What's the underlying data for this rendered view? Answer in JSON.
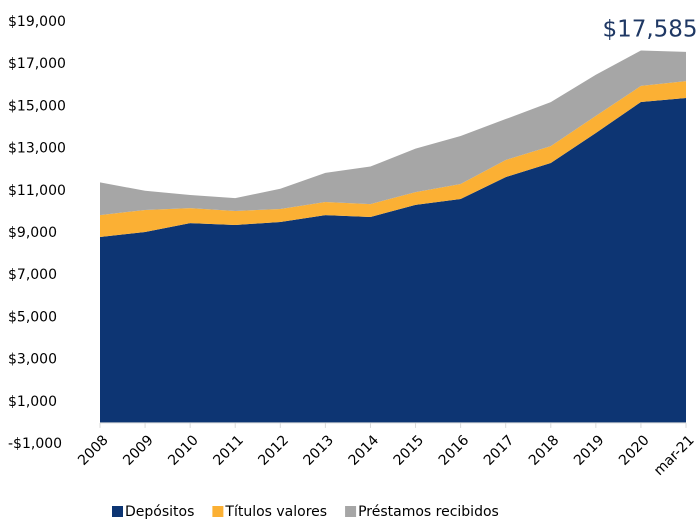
{
  "chart_data": {
    "type": "stacked_area",
    "annotation": "$17,585",
    "categories": [
      "2008",
      "2009",
      "2010",
      "2011",
      "2012",
      "2013",
      "2014",
      "2015",
      "2016",
      "2017",
      "2018",
      "2019",
      "2020",
      "mar-21"
    ],
    "series": [
      {
        "name": "Depósitos",
        "color": "#0d3573",
        "values": [
          8810,
          9050,
          9470,
          9380,
          9520,
          9850,
          9760,
          10330,
          10610,
          11650,
          12320,
          13740,
          15210,
          15400
        ]
      },
      {
        "name": "Títulos valores",
        "color": "#fbb034",
        "values": [
          1040,
          1040,
          710,
          660,
          620,
          620,
          610,
          610,
          710,
          810,
          800,
          810,
          760,
          800
        ]
      },
      {
        "name": "Préstamos recibidos",
        "color": "#a6a6a6",
        "values": [
          1550,
          910,
          620,
          610,
          960,
          1380,
          1780,
          2060,
          2280,
          1940,
          2080,
          1950,
          1680,
          1385
        ]
      }
    ],
    "ylim": [
      -1000,
      19000
    ],
    "yticks": [
      {
        "value": -1000,
        "label": "-$1,000"
      },
      {
        "value": 1000,
        "label": "$1,000"
      },
      {
        "value": 3000,
        "label": "$3,000"
      },
      {
        "value": 5000,
        "label": "$5,000"
      },
      {
        "value": 7000,
        "label": "$7,000"
      },
      {
        "value": 9000,
        "label": "$9,000"
      },
      {
        "value": 11000,
        "label": "$11,000"
      },
      {
        "value": 13000,
        "label": "$13,000"
      },
      {
        "value": 15000,
        "label": "$15,000"
      },
      {
        "value": 17000,
        "label": "$17,000"
      },
      {
        "value": 19000,
        "label": "$19,000"
      }
    ],
    "grid": false,
    "legend": "bottom"
  }
}
